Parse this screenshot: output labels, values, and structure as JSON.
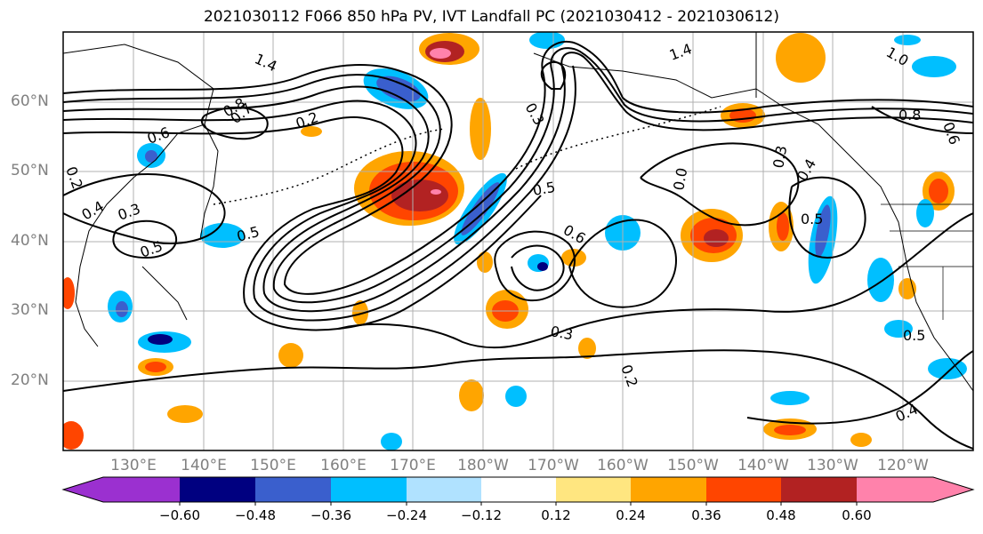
{
  "title": "2021030112 F066 850 hPa PV, IVT Landfall PC (2021030412 - 2021030612)",
  "lat_labels": [
    "60°N",
    "50°N",
    "40°N",
    "30°N",
    "20°N"
  ],
  "lon_labels": [
    "130°E",
    "140°E",
    "150°E",
    "160°E",
    "170°E",
    "180°W",
    "170°W",
    "160°W",
    "150°W",
    "140°W",
    "130°W",
    "120°W"
  ],
  "colorbar": {
    "ticks": [
      "−0.60",
      "−0.48",
      "−0.36",
      "−0.24",
      "−0.12",
      "0.12",
      "0.24",
      "0.36",
      "0.48",
      "0.60"
    ],
    "colors": [
      "#9b30d0",
      "#000080",
      "#3a5fcd",
      "#00bfff",
      "#b0e2ff",
      "#ffffff",
      "#ffe680",
      "#ffa500",
      "#ff4500",
      "#b22222",
      "#ff82ab"
    ]
  },
  "contour_labels": [
    "1.4",
    "1.4",
    "1.0",
    "0.8",
    "0.8",
    "0.6",
    "0.5",
    "0.5",
    "0.5",
    "0.5",
    "0.4",
    "0.4",
    "0.4",
    "0.3",
    "0.3",
    "0.3",
    "0.3",
    "0.2",
    "0.2",
    "0.2",
    "0.6",
    "0.7",
    "0.0",
    "0.6",
    "0.5"
  ],
  "map_extent": {
    "lon_min": 120,
    "lon_max": 250,
    "lat_min": 10,
    "lat_max": 70
  },
  "grid_lon": [
    130,
    140,
    150,
    160,
    170,
    180,
    190,
    200,
    210,
    220,
    230,
    240
  ],
  "grid_lat": [
    20,
    30,
    40,
    50,
    60
  ]
}
